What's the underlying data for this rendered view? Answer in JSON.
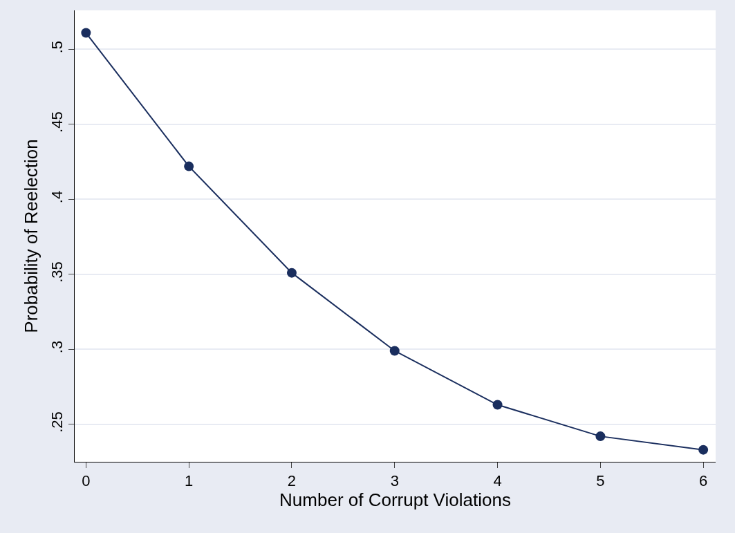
{
  "chart_data": {
    "type": "line",
    "xlabel": "Number of Corrupt Violations",
    "ylabel": "Probability of Reelection",
    "x": [
      0,
      1,
      2,
      3,
      4,
      5,
      6
    ],
    "series": [
      {
        "color": "#1a2e5e",
        "values": [
          0.511,
          0.422,
          0.351,
          0.299,
          0.263,
          0.242,
          0.233
        ]
      }
    ],
    "xlim": [
      -0.11,
      6.12
    ],
    "xticks": [
      0,
      1,
      2,
      3,
      4,
      5,
      6
    ],
    "ylim": [
      0.225,
      0.526
    ],
    "yticks": [
      {
        "value": 0.25,
        "label": ".25"
      },
      {
        "value": 0.3,
        "label": ".3"
      },
      {
        "value": 0.35,
        "label": ".35"
      },
      {
        "value": 0.4,
        "label": ".4"
      },
      {
        "value": 0.45,
        "label": ".45"
      },
      {
        "value": 0.5,
        "label": ".5"
      }
    ],
    "grid": "y",
    "marker": "circle",
    "line_style": "solid"
  }
}
